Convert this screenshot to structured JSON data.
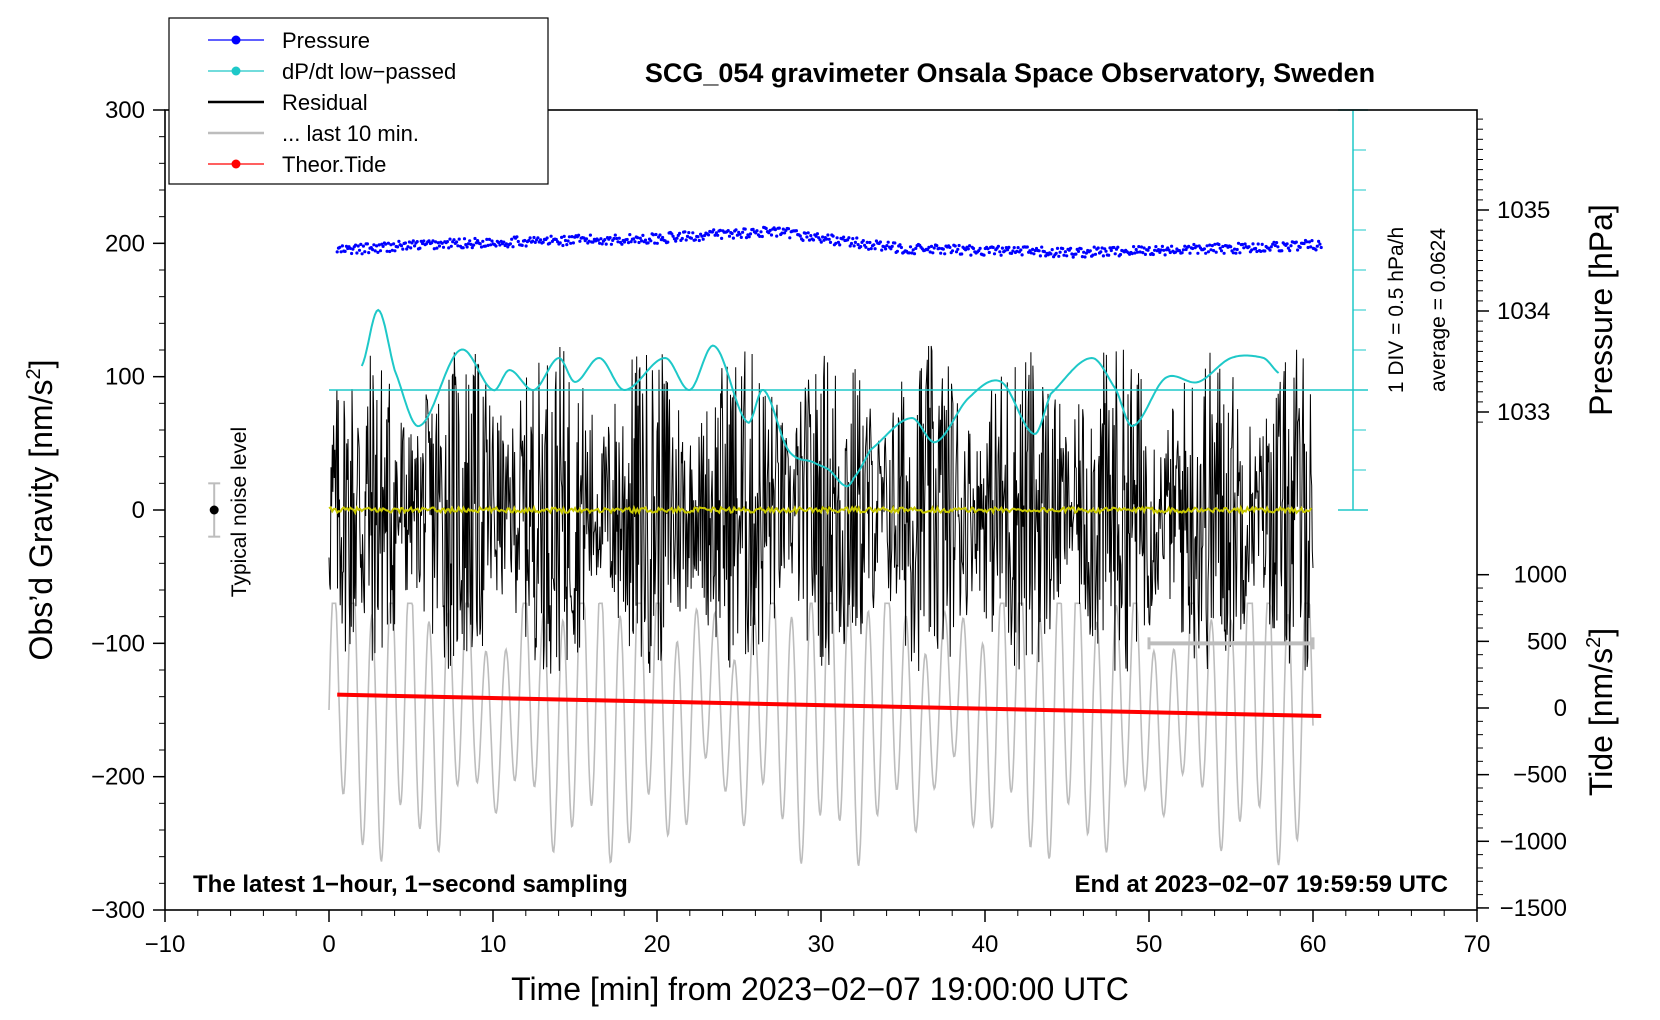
{
  "chart_data": {
    "type": "line",
    "title": "SCG_054 gravimeter Onsala Space Observatory, Sweden",
    "xlabel": "Time [min] from 2023−02−07 19:00:00 UTC",
    "ylabel_left": "Obs’d Gravity [nm/s",
    "ylabel_left_sup": "2",
    "ylabel_left_end": "]",
    "ylabel_right_pressure": "Pressure [hPa]",
    "ylabel_right_tide": "Tide [nm/s",
    "ylabel_right_tide_sup": "2",
    "ylabel_right_tide_end": "]",
    "xlim": [
      -10,
      70
    ],
    "ylim_left": [
      -300,
      300
    ],
    "x_ticks": [
      "−10",
      "0",
      "10",
      "20",
      "30",
      "40",
      "50",
      "60",
      "70"
    ],
    "x_tick_values": [
      -10,
      0,
      10,
      20,
      30,
      40,
      50,
      60,
      70
    ],
    "y_ticks_left": [
      "300",
      "200",
      "100",
      "0",
      "−100",
      "−200",
      "−300"
    ],
    "y_tick_values_left": [
      300,
      200,
      100,
      0,
      -100,
      -200,
      -300
    ],
    "pressure_ticks": [
      "1035",
      "1034",
      "1033"
    ],
    "pressure_tick_values": [
      1035,
      1034,
      1033
    ],
    "tide_ticks": [
      "1000",
      "500",
      "0",
      "−500",
      "−1000",
      "−1500"
    ],
    "tide_tick_values": [
      1000,
      500,
      0,
      -500,
      -1000,
      -1500
    ],
    "bottom_left_note": "The latest 1−hour, 1−second sampling",
    "bottom_right_note": "End at 2023−02−07 19:59:59 UTC",
    "noise_label": "Typical noise level",
    "dpdt_scale_label": "1 DIV = 0.5 hPa/h",
    "dpdt_average_label": "average = 0.0624",
    "legend": [
      {
        "label": "Pressure",
        "color": "#0000ff",
        "marker": "dot"
      },
      {
        "label": "dP/dt low−passed",
        "color": "#1ec8c8",
        "marker": "dot"
      },
      {
        "label": "Residual",
        "color": "#000000",
        "marker": "none"
      },
      {
        "label": "... last 10 min.",
        "color": "#bdbdbd",
        "marker": "none"
      },
      {
        "label": "Theor.Tide",
        "color": "#ff0000",
        "marker": "dot"
      }
    ],
    "series": [
      {
        "name": "Pressure",
        "units": "hPa",
        "x": [
          0.5,
          5,
          10,
          15,
          20,
          25,
          27,
          30,
          35,
          40,
          45,
          50,
          55,
          60
        ],
        "values": [
          1034.6,
          1034.65,
          1034.68,
          1034.7,
          1034.72,
          1034.77,
          1034.78,
          1034.72,
          1034.62,
          1034.6,
          1034.58,
          1034.6,
          1034.62,
          1034.65
        ]
      },
      {
        "name": "dP/dt low-passed",
        "units": "DIV",
        "baseline_div": 3,
        "x": [
          2,
          3,
          4,
          5.5,
          8,
          10,
          11,
          12.5,
          14,
          15,
          16.5,
          18,
          20.5,
          22,
          23.5,
          25.5,
          26.5,
          28,
          29.5,
          30.5,
          31.5,
          32,
          33,
          35.5,
          37,
          39,
          41,
          43,
          44,
          46.5,
          48,
          49,
          51,
          53,
          55,
          57,
          58
        ],
        "values": [
          3.6,
          5.0,
          3.5,
          2.1,
          4.0,
          3.0,
          3.5,
          3.0,
          3.8,
          3.2,
          3.8,
          3.0,
          3.8,
          3.0,
          4.1,
          2.2,
          3.0,
          1.5,
          1.2,
          1.0,
          0.6,
          0.8,
          1.5,
          2.3,
          1.7,
          2.8,
          3.2,
          1.9,
          2.9,
          3.8,
          3.0,
          2.1,
          3.3,
          3.2,
          3.8,
          3.8,
          3.4
        ]
      },
      {
        "name": "Theor.Tide",
        "units": "nm/s2",
        "x": [
          0.5,
          60.5
        ],
        "values": [
          100,
          -60
        ]
      },
      {
        "name": "Residual",
        "units": "nm/s2",
        "description_values": {
          "x_range": [
            0,
            60
          ],
          "envelope_max": 130,
          "envelope_min": -140
        }
      },
      {
        "name": "... last 10 min.",
        "units": "nm/s2",
        "x_range": [
          50,
          60
        ],
        "values": [
          -100,
          -100
        ]
      },
      {
        "name": "Typical noise level",
        "x": -7,
        "value": 0,
        "error": 20
      }
    ]
  }
}
